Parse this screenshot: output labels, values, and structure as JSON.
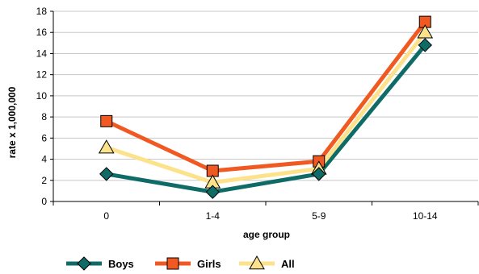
{
  "chart_data": {
    "type": "line",
    "categories": [
      "0",
      "1-4",
      "5-9",
      "10-14"
    ],
    "xlabel": "age group",
    "ylabel": "rate x 1,000,000",
    "ylim": [
      0,
      18
    ],
    "yticks": [
      0,
      2,
      4,
      6,
      8,
      10,
      12,
      14,
      16,
      18
    ],
    "grid": true,
    "legend_position": "bottom",
    "series": [
      {
        "name": "Boys",
        "values": [
          2.6,
          0.9,
          2.6,
          14.8
        ],
        "color": "#0e6b66",
        "marker": "diamond"
      },
      {
        "name": "Girls",
        "values": [
          7.6,
          2.9,
          3.8,
          17.0
        ],
        "color": "#f05a22",
        "marker": "square"
      },
      {
        "name": "All",
        "values": [
          5.1,
          1.8,
          3.1,
          16.0
        ],
        "color": "#fce28a",
        "marker": "triangle"
      }
    ],
    "colors": {
      "grid": "#c8c8c8",
      "axis": "#000000",
      "marker_edge": "#000000"
    }
  }
}
